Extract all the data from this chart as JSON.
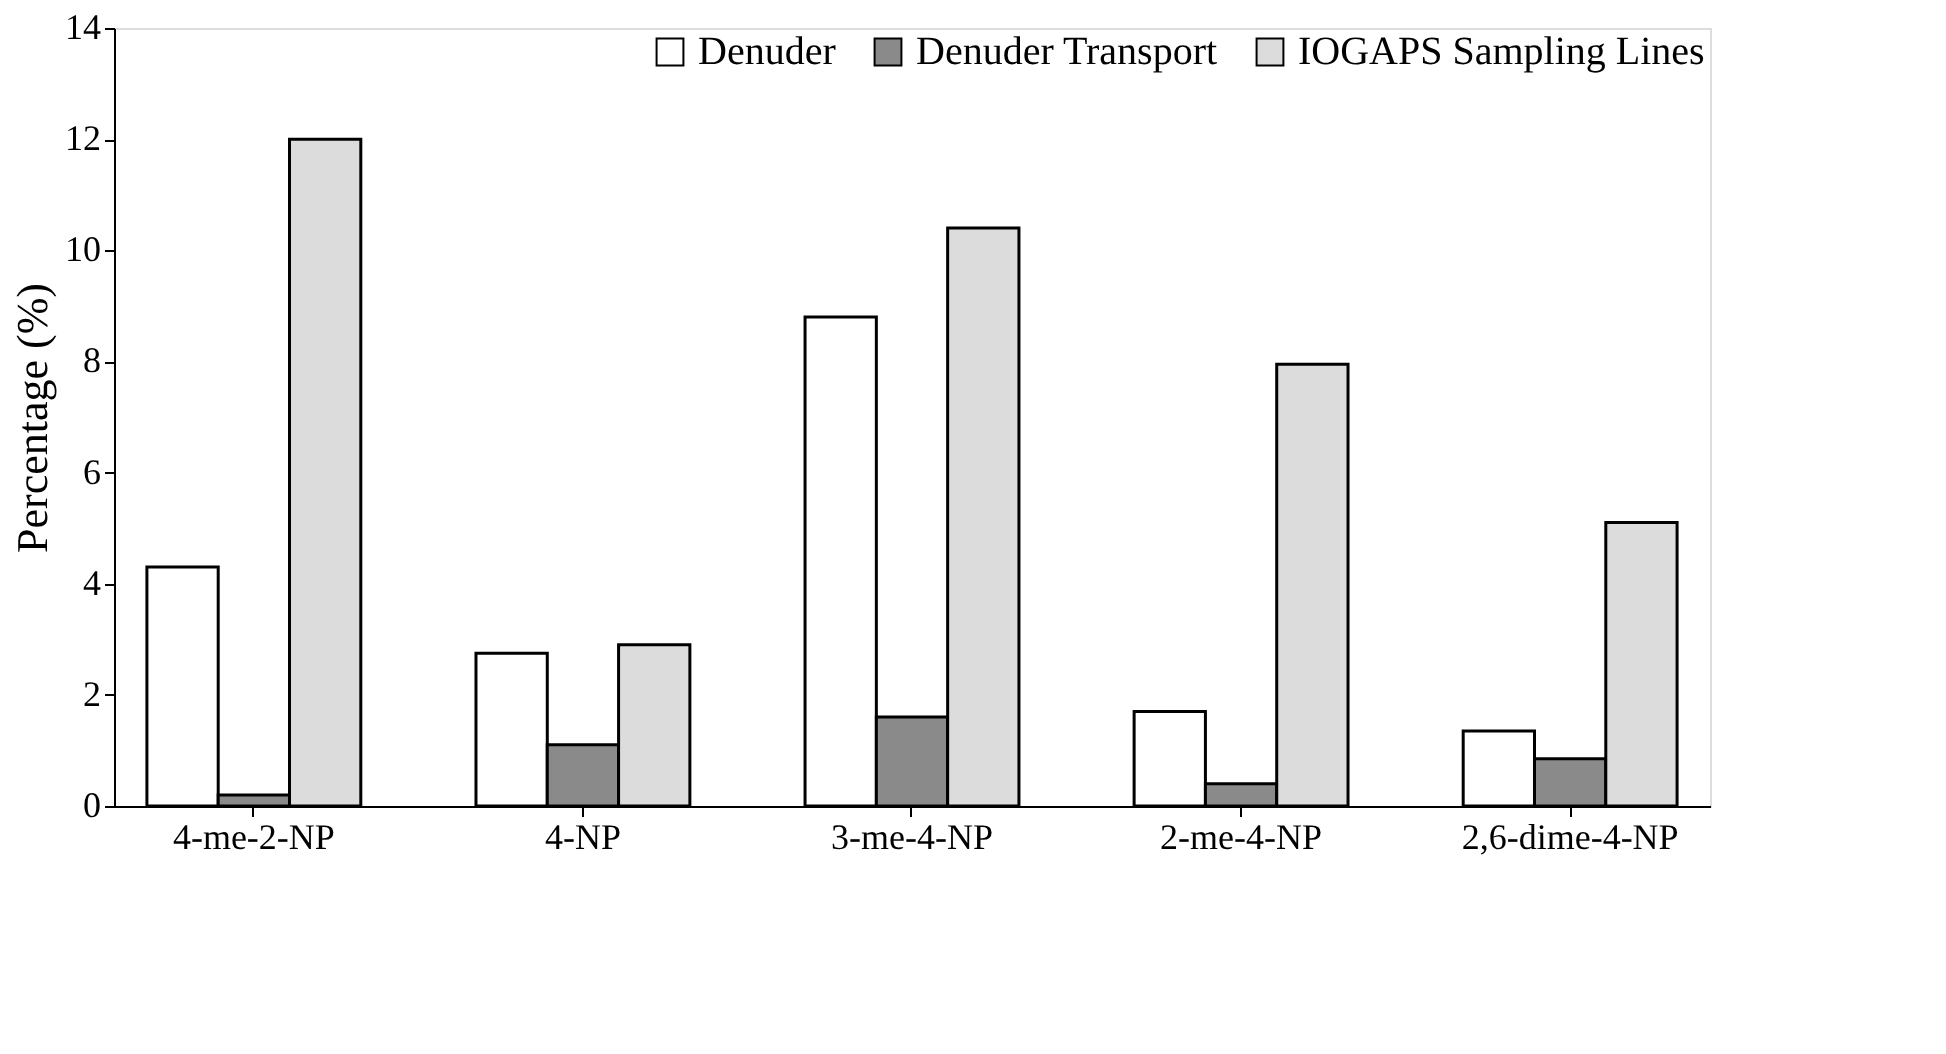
{
  "chart_data": {
    "type": "bar",
    "ylabel": "Percentage (%)",
    "categories": [
      "4-me-2-NP",
      "4-NP",
      "3-me-4-NP",
      "2-me-4-NP",
      "2,6-dime-4-NP"
    ],
    "series": [
      {
        "name": "Denuder",
        "color": "#ffffff",
        "values": [
          4.3,
          2.75,
          8.8,
          1.7,
          1.35
        ]
      },
      {
        "name": "Denuder Transport",
        "color": "#8a8a8a",
        "values": [
          0.2,
          1.1,
          1.6,
          0.4,
          0.85
        ]
      },
      {
        "name": "IOGAPS Sampling Lines",
        "color": "#dcdcdc",
        "values": [
          12.0,
          2.9,
          10.4,
          7.95,
          5.1
        ]
      }
    ],
    "ylim": [
      0,
      14
    ],
    "yticks": [
      0,
      2,
      4,
      6,
      8,
      10,
      12,
      14
    ],
    "grid": false,
    "legend": "top right"
  }
}
